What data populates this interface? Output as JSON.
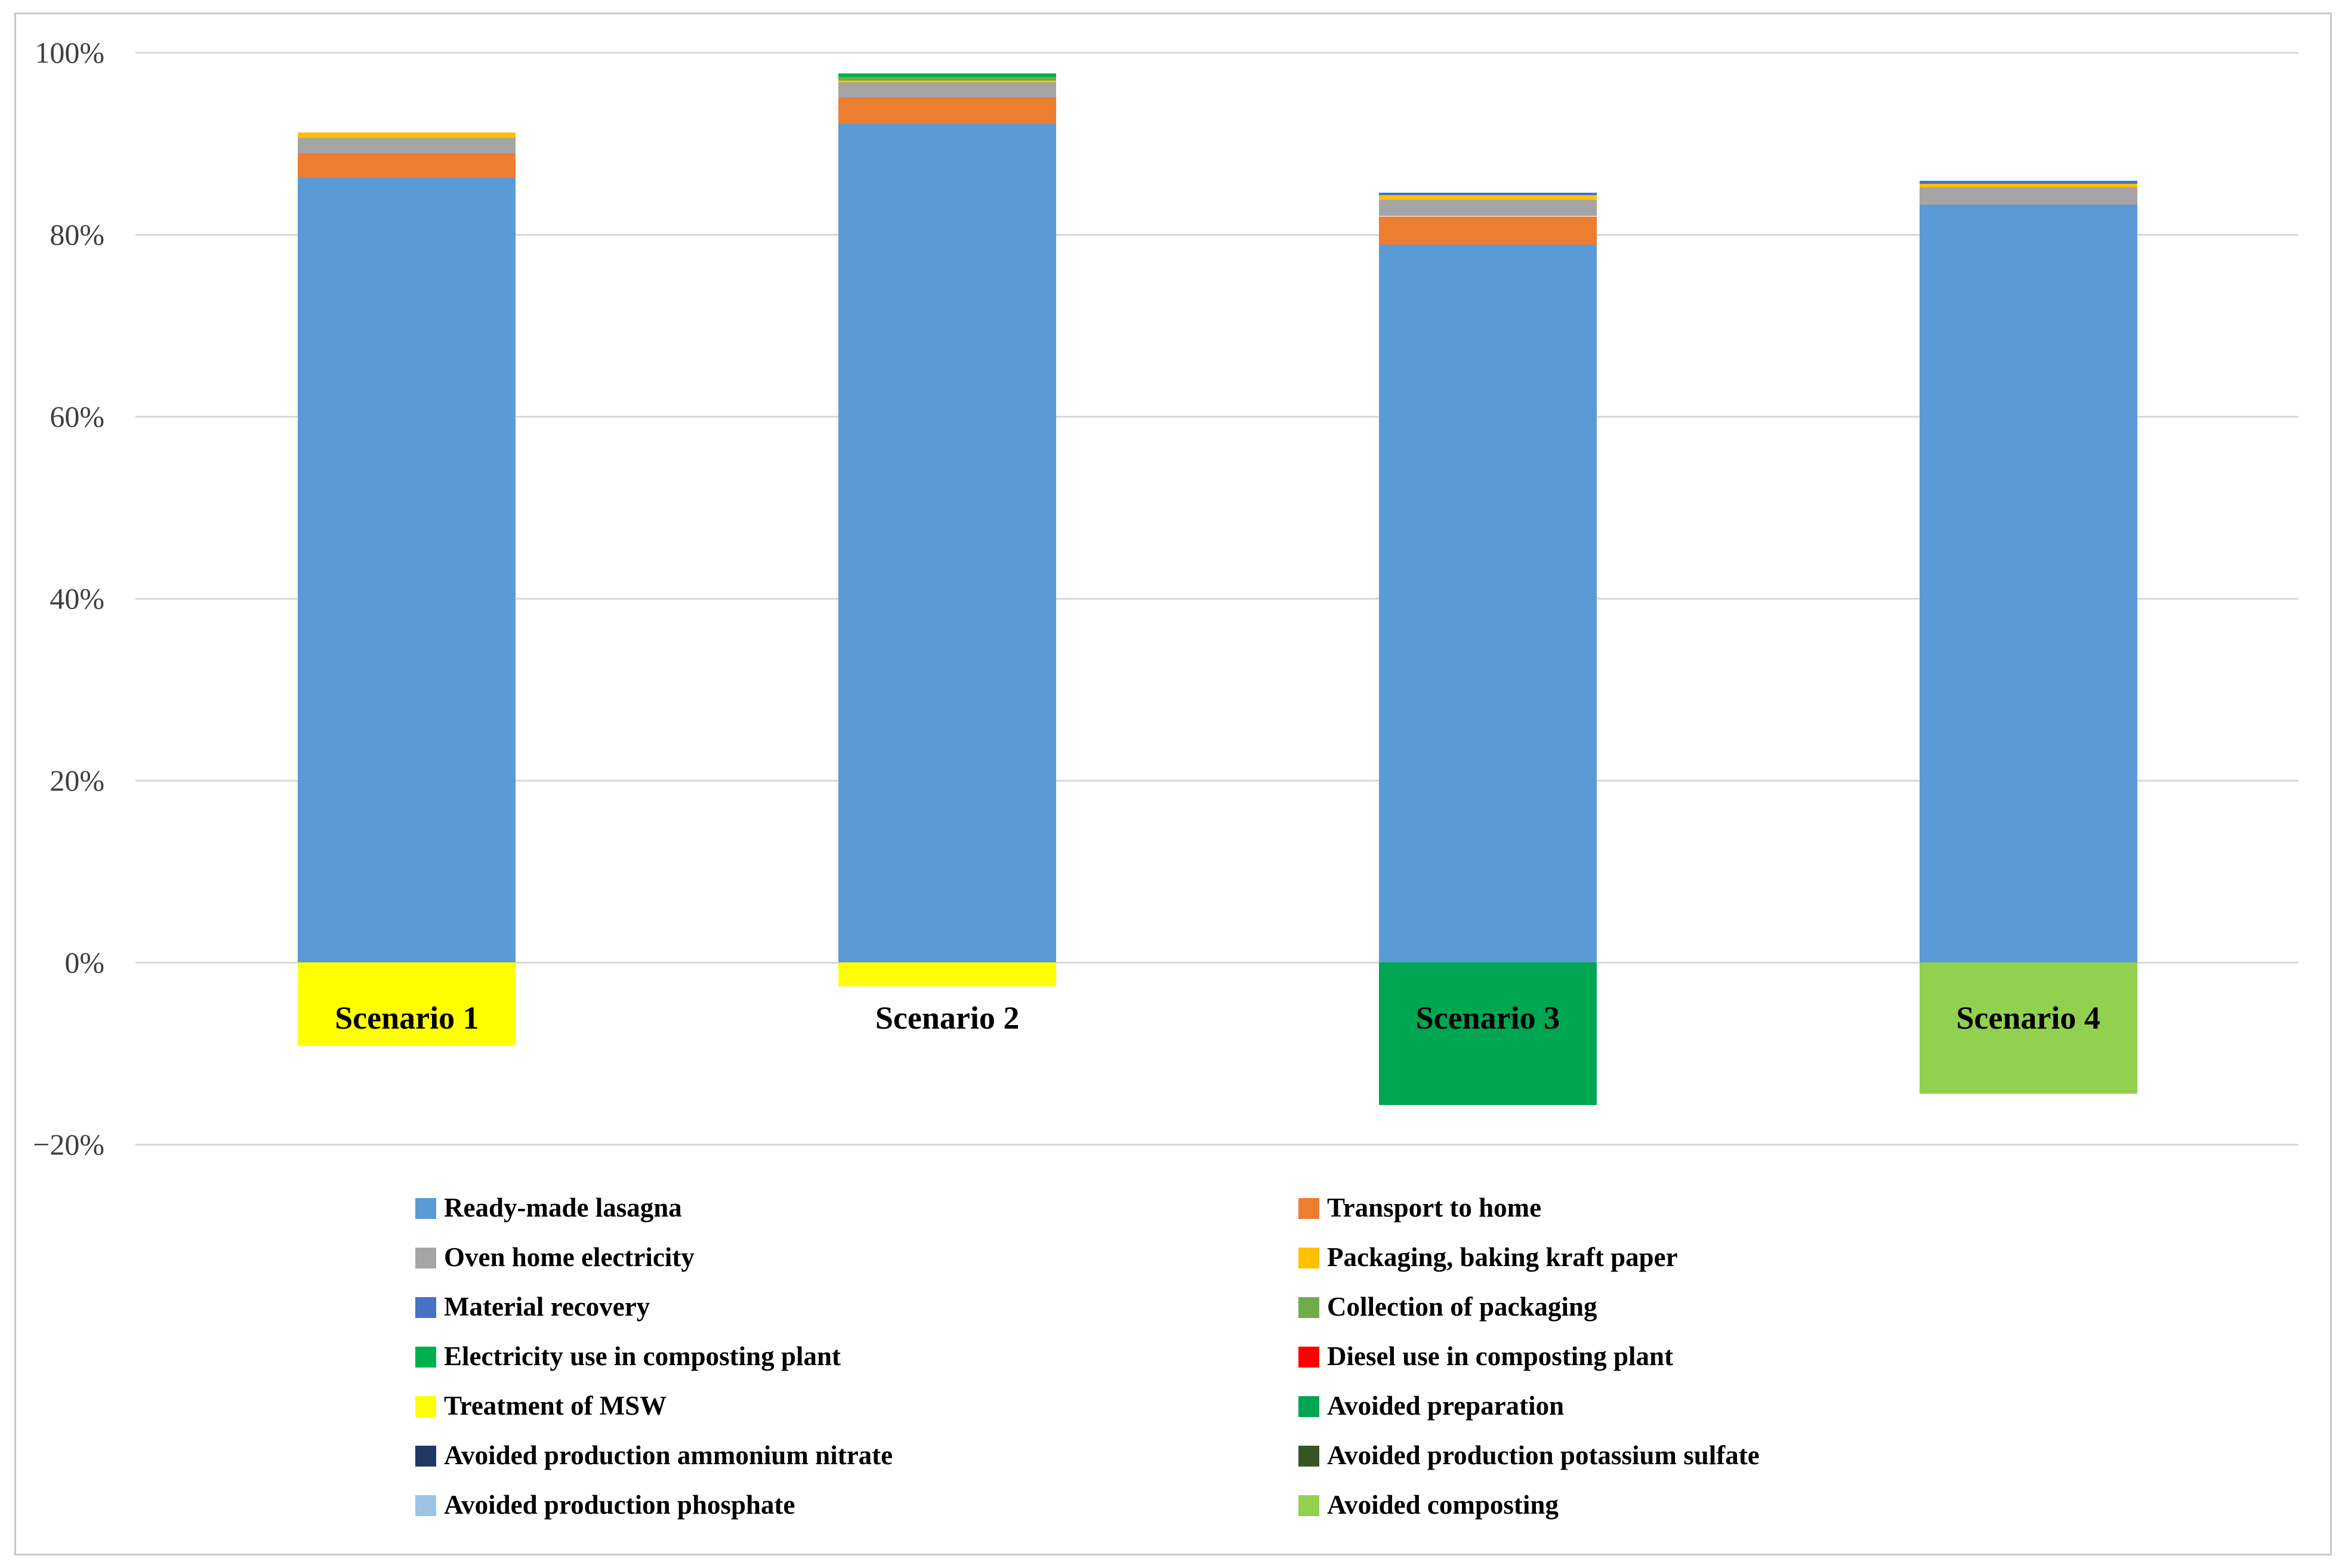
{
  "figure": {
    "background": "#ffffff",
    "border_color": "#c8c8c8",
    "gridline_color": "#d9d9d9",
    "axis_text_color": "#3f3f3f"
  },
  "chart_data": {
    "type": "bar",
    "stacked": true,
    "title": "",
    "xlabel": "",
    "ylabel": "",
    "ylim": [
      -20,
      100
    ],
    "grid": true,
    "legend_position": "bottom, two columns",
    "categories": [
      "Scenario 1",
      "Scenario 2",
      "Scenario 3",
      "Scenario 4"
    ],
    "yticks_values": [
      100,
      80,
      60,
      40,
      20,
      0,
      -20
    ],
    "yticks_labels": [
      "100%",
      "80%",
      "60%",
      "40%",
      "20%",
      "0%",
      "−20%"
    ],
    "positive_totals_pct": [
      91.2,
      97.7,
      84.6,
      85.9
    ],
    "negative_totals_pct": [
      -9.1,
      -2.6,
      -15.7,
      -14.4
    ],
    "series": [
      {
        "name": "Ready-made lasagna",
        "color": "#5b9bd5",
        "values": [
          86.3,
          92.2,
          78.9,
          83.3
        ]
      },
      {
        "name": "Transport to home",
        "color": "#ed7d31",
        "values": [
          2.6,
          2.9,
          3.1,
          0
        ]
      },
      {
        "name": "Oven home electricity",
        "color": "#a5a5a5",
        "values": [
          1.7,
          1.6,
          1.8,
          1.9
        ]
      },
      {
        "name": "Packaging, baking kraft paper",
        "color": "#ffc000",
        "values": [
          0.6,
          0.2,
          0.5,
          0.4
        ]
      },
      {
        "name": "Material recovery",
        "color": "#4472c4",
        "values": [
          0,
          0,
          0.3,
          0.3
        ]
      },
      {
        "name": "Collection of packaging",
        "color": "#70ad47",
        "values": [
          0,
          0.4,
          0,
          0
        ]
      },
      {
        "name": "Electricity use in composting plant",
        "color": "#00b050",
        "values": [
          0,
          0.4,
          0,
          0
        ]
      },
      {
        "name": "Diesel use in composting plant",
        "color": "#ff0000",
        "values": [
          0,
          0,
          0,
          0
        ]
      },
      {
        "name": "Treatment of MSW",
        "color": "#ffff00",
        "values": [
          -9.1,
          -2.6,
          0,
          0
        ]
      },
      {
        "name": "Avoided preparation",
        "color": "#00a651",
        "values": [
          0,
          0,
          -15.7,
          0
        ]
      },
      {
        "name": "Avoided production ammonium nitrate",
        "color": "#1f3864",
        "values": [
          0,
          0,
          0,
          0
        ]
      },
      {
        "name": "Avoided production potassium sulfate",
        "color": "#375623",
        "values": [
          0,
          0,
          0,
          0
        ]
      },
      {
        "name": "Avoided production phosphate",
        "color": "#9dc3e6",
        "values": [
          0,
          0,
          0,
          0
        ]
      },
      {
        "name": "Avoided composting",
        "color": "#92d050",
        "values": [
          0,
          0,
          0,
          -14.4
        ]
      }
    ]
  }
}
